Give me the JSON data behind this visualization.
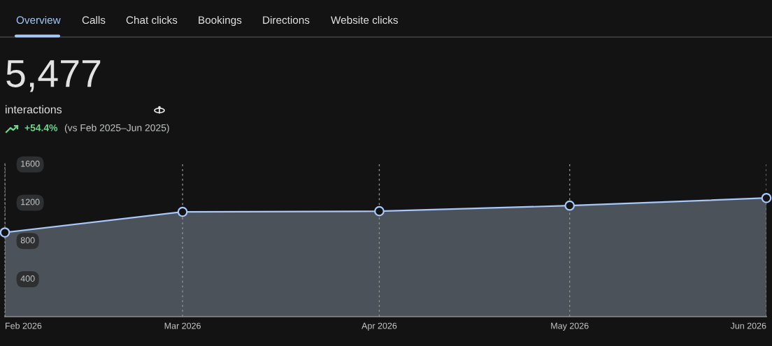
{
  "chart_data": {
    "type": "area",
    "title": "5,477",
    "subtitle": "interactions",
    "annotations": [
      "Overview",
      "Calls",
      "Chat clicks",
      "Bookings",
      "Directions",
      "Website clicks",
      "+54.4%",
      "(vs Feb 2025–Jun 2025)"
    ],
    "x": [
      "2026-02",
      "2026-03",
      "2026-04",
      "2026-05",
      "2026-06"
    ],
    "series": [
      {
        "color": "#a8c7fa",
        "values": [
          880,
          1095,
          1102,
          1160,
          1240
        ]
      }
    ],
    "xlim": [
      "2026-02",
      "2026-06"
    ],
    "xticks": [
      {
        "value": "2026-02",
        "label": "Feb 2026"
      },
      {
        "value": "2026-03",
        "label": "Mar 2026"
      },
      {
        "value": "2026-04",
        "label": "Apr 2026"
      },
      {
        "value": "2026-05",
        "label": "May 2026"
      },
      {
        "value": "2026-06",
        "label": "Jun 2026"
      }
    ],
    "ylim": [
      0,
      1600
    ],
    "yticks": [
      400,
      800,
      1200,
      1600
    ],
    "grid": "x",
    "marker": "circle",
    "line_style": "solid"
  }
}
